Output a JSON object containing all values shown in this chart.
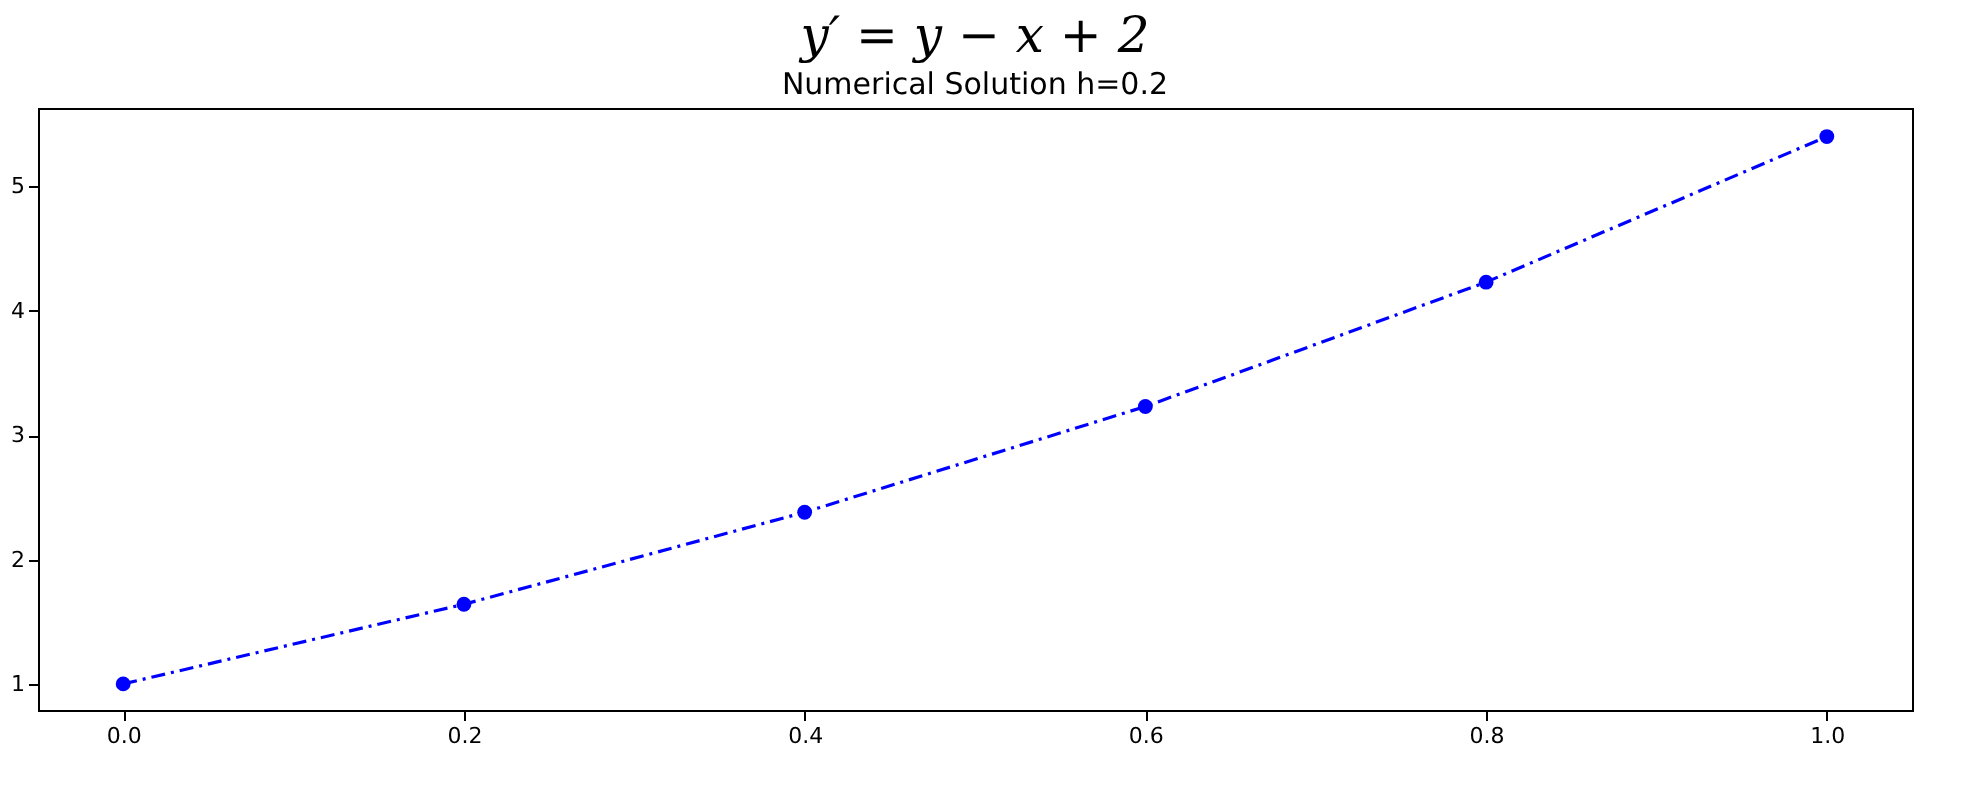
{
  "chart_data": {
    "type": "line",
    "title": "y′ = y − x + 2",
    "subtitle": "Numerical Solution h=0.2",
    "x": [
      0,
      0.2,
      0.4,
      0.6,
      0.8,
      1.0
    ],
    "series": [
      {
        "color": "#0000ff",
        "values": [
          1,
          1.64,
          2.38,
          3.23,
          4.23,
          5.4
        ]
      }
    ],
    "xlim": [
      -0.05,
      1.05
    ],
    "xticks": [
      {
        "value": 0,
        "label": "0.0"
      },
      0.2,
      0.4,
      0.6,
      0.8,
      {
        "value": 1,
        "label": "1.0"
      }
    ],
    "ylim": [
      0.79,
      5.63
    ],
    "yticks": [
      1,
      2,
      3,
      4,
      5
    ],
    "marker": "circle",
    "line_style": "dashed",
    "grid": false,
    "legend": false
  }
}
